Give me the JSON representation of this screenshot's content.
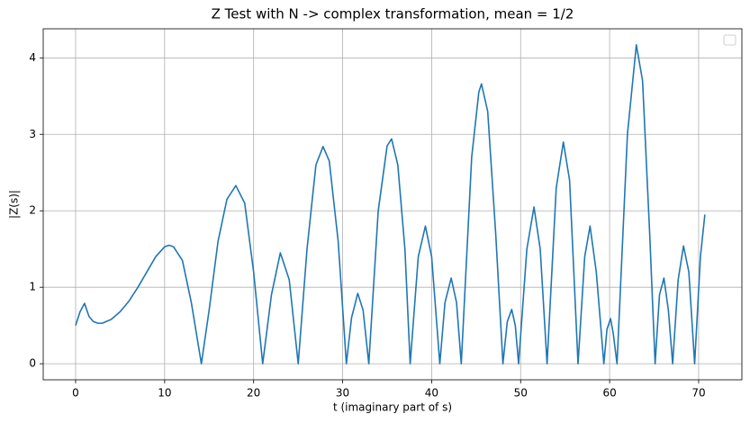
{
  "chart_data": {
    "type": "line",
    "title": "Z Test with N -> complex transformation, mean = 1/2",
    "x_label": "t (imaginary part of s)",
    "y_label": "|Z(s)|",
    "x": [
      0,
      0.5,
      1,
      1.5,
      2,
      2.5,
      3,
      4,
      5,
      6,
      7,
      8,
      9,
      10,
      10.5,
      11,
      12,
      13,
      14.13,
      15,
      16,
      17,
      18,
      19,
      20,
      21.02,
      22,
      23,
      24,
      25.01,
      26,
      27,
      27.8,
      28.5,
      29.5,
      30.42,
      31,
      31.7,
      32.3,
      32.94,
      34,
      35,
      35.5,
      36.2,
      37,
      37.59,
      38.5,
      39.3,
      40,
      40.92,
      41.5,
      42.2,
      42.8,
      43.33,
      44.5,
      45.3,
      45.6,
      46.3,
      47.2,
      48.01,
      48.5,
      49,
      49.4,
      49.77,
      50.7,
      51.5,
      52.2,
      52.97,
      54,
      54.8,
      55.5,
      56.45,
      57.2,
      57.8,
      58.5,
      59.35,
      59.7,
      60.1,
      60.4,
      60.83,
      62,
      63,
      63.7,
      64.5,
      65.11,
      65.6,
      66.1,
      66.6,
      67.08,
      67.7,
      68.3,
      68.9,
      69.55,
      70.2,
      70.7
    ],
    "series": [
      {
        "color": "#1f77b4",
        "values": [
          0.5,
          0.68,
          0.79,
          0.62,
          0.55,
          0.53,
          0.53,
          0.58,
          0.68,
          0.82,
          1.0,
          1.2,
          1.4,
          1.53,
          1.55,
          1.53,
          1.35,
          0.8,
          0,
          0.7,
          1.6,
          2.15,
          2.33,
          2.1,
          1.2,
          0,
          0.9,
          1.45,
          1.1,
          0,
          1.5,
          2.6,
          2.84,
          2.65,
          1.6,
          0,
          0.6,
          0.92,
          0.7,
          0,
          2.0,
          2.85,
          2.94,
          2.6,
          1.5,
          0,
          1.4,
          1.8,
          1.4,
          0,
          0.8,
          1.12,
          0.8,
          0,
          2.7,
          3.55,
          3.66,
          3.3,
          1.7,
          0,
          0.55,
          0.71,
          0.5,
          0,
          1.5,
          2.05,
          1.5,
          0,
          2.3,
          2.9,
          2.4,
          0,
          1.4,
          1.8,
          1.2,
          0,
          0.45,
          0.59,
          0.4,
          0,
          3.0,
          4.17,
          3.7,
          1.7,
          0,
          0.9,
          1.12,
          0.7,
          0,
          1.1,
          1.54,
          1.2,
          0,
          1.4,
          1.95
        ]
      }
    ],
    "xlim": [
      -3.64,
      74.86
    ],
    "ylim": [
      -0.21,
      4.38
    ],
    "xticks": [
      0,
      10,
      20,
      30,
      40,
      50,
      60,
      70
    ],
    "yticks": [
      0,
      1,
      2,
      3,
      4
    ],
    "grid": true,
    "legend": "upper right"
  }
}
